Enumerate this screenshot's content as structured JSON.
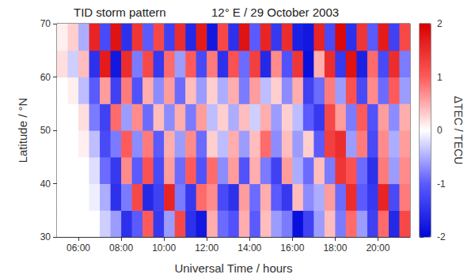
{
  "chart_data": {
    "type": "heatmap",
    "title": "TID storm pattern",
    "subtitle": "12° E / 29 October 2003",
    "x_label": "Universal Time / hours",
    "y_label": "Latitude / °N",
    "x": [
      5.25,
      5.75,
      6.25,
      6.75,
      7.25,
      7.75,
      8.25,
      8.75,
      9.25,
      9.75,
      10.25,
      10.75,
      11.25,
      11.75,
      12.25,
      12.75,
      13.25,
      13.75,
      14.25,
      14.75,
      15.25,
      15.75,
      16.25,
      16.75,
      17.25,
      17.75,
      18.25,
      18.75,
      19.25,
      19.75,
      20.25,
      20.75,
      21.25
    ],
    "y": [
      32.5,
      37.5,
      42.5,
      47.5,
      52.5,
      57.5,
      62.5,
      67.5
    ],
    "values": [
      [
        0.0,
        0.0,
        0.0,
        0.0,
        -0.3,
        -0.6,
        -1.5,
        -1.0,
        1.0,
        -1.4,
        -0.6,
        1.2,
        -1.5,
        -1.8,
        0.5,
        -0.9,
        -1.1,
        0.5,
        -1.0,
        0.4,
        -0.6,
        -0.8,
        -1.9,
        -1.3,
        -0.6,
        0.4,
        -0.8,
        0.9,
        -0.6,
        -1.3,
        0.9,
        -1.6,
        1.2
      ],
      [
        0.0,
        0.0,
        0.0,
        -0.1,
        -0.5,
        -1.5,
        -0.8,
        1.2,
        -1.6,
        -1.3,
        1.6,
        -0.8,
        -1.4,
        0.9,
        0.7,
        -1.2,
        -1.5,
        0.6,
        -0.9,
        0.5,
        -1.0,
        -1.4,
        0.4,
        -0.7,
        -0.5,
        0.6,
        -0.9,
        1.5,
        -1.0,
        -1.4,
        1.6,
        -1.2,
        0.8
      ],
      [
        0.0,
        0.0,
        0.0,
        -0.2,
        -0.9,
        -1.4,
        0.7,
        -1.0,
        1.1,
        -1.2,
        0.6,
        -0.9,
        1.0,
        -1.1,
        0.9,
        -0.7,
        0.6,
        -1.1,
        0.5,
        -0.8,
        -1.3,
        0.6,
        -0.5,
        -0.9,
        0.4,
        -0.8,
        1.4,
        1.1,
        -0.9,
        -1.5,
        0.8,
        -0.6,
        0.7
      ],
      [
        0.0,
        0.0,
        0.1,
        -0.4,
        -1.2,
        -0.8,
        1.0,
        -0.7,
        0.8,
        -1.0,
        0.5,
        -0.6,
        0.7,
        -0.9,
        0.3,
        -0.4,
        0.5,
        -0.6,
        0.4,
        0.9,
        -0.7,
        0.4,
        -0.6,
        0.3,
        -1.0,
        1.3,
        1.5,
        -0.6,
        0.8,
        -1.2,
        0.7,
        -0.5,
        0.6
      ],
      [
        0.0,
        0.0,
        0.2,
        -0.8,
        -1.3,
        0.9,
        -0.6,
        0.7,
        -0.9,
        0.4,
        -0.7,
        0.5,
        -0.8,
        0.6,
        -0.4,
        0.3,
        -0.5,
        0.4,
        -0.3,
        0.5,
        -0.6,
        0.3,
        -0.4,
        -1.0,
        -1.4,
        1.2,
        0.6,
        -0.8,
        1.0,
        -1.1,
        0.6,
        -0.7,
        0.5
      ],
      [
        0.0,
        0.1,
        -0.4,
        -1.0,
        0.6,
        -1.3,
        0.8,
        -1.1,
        0.5,
        -0.7,
        0.6,
        -0.9,
        0.4,
        -0.6,
        0.3,
        -0.5,
        0.5,
        -0.8,
        0.6,
        -0.4,
        0.3,
        -0.7,
        0.5,
        -1.3,
        -0.9,
        0.8,
        -0.6,
        1.1,
        -1.2,
        0.7,
        -0.9,
        1.0,
        -0.6
      ],
      [
        0.2,
        -0.3,
        0.4,
        -1.5,
        1.7,
        -1.8,
        1.5,
        -0.8,
        1.2,
        -1.4,
        0.9,
        -0.6,
        1.0,
        -1.2,
        0.8,
        -1.5,
        1.1,
        -0.9,
        1.3,
        -1.6,
        0.7,
        -1.1,
        1.4,
        -1.9,
        0.5,
        1.5,
        -1.4,
        1.8,
        -1.7,
        0.9,
        -1.2,
        1.5,
        -0.8
      ],
      [
        0.1,
        0.3,
        -0.5,
        1.6,
        -1.2,
        1.8,
        -1.5,
        1.4,
        -1.0,
        1.2,
        -1.3,
        1.5,
        -1.6,
        1.7,
        -1.8,
        1.2,
        -1.5,
        1.8,
        -1.0,
        1.6,
        -1.4,
        1.5,
        -1.7,
        -1.8,
        1.6,
        -1.2,
        1.9,
        -1.5,
        1.4,
        -1.0,
        1.7,
        -1.3,
        1.2
      ]
    ],
    "xlim": [
      5,
      21.5
    ],
    "xticks": [
      {
        "value": 6,
        "label": "06:00"
      },
      {
        "value": 8,
        "label": "08:00"
      },
      {
        "value": 10,
        "label": "10:00"
      },
      {
        "value": 12,
        "label": "12:00"
      },
      {
        "value": 14,
        "label": "14:00"
      },
      {
        "value": 16,
        "label": "16:00"
      },
      {
        "value": 18,
        "label": "18:00"
      },
      {
        "value": 20,
        "label": "20:00"
      }
    ],
    "ylim": [
      30,
      70
    ],
    "yticks": [
      30,
      40,
      50,
      60,
      70
    ],
    "colorbar": {
      "label": "ΔTEC / TECU",
      "range": [
        -2,
        2
      ],
      "ticks": [
        -2,
        -1,
        0,
        1,
        2
      ]
    }
  }
}
